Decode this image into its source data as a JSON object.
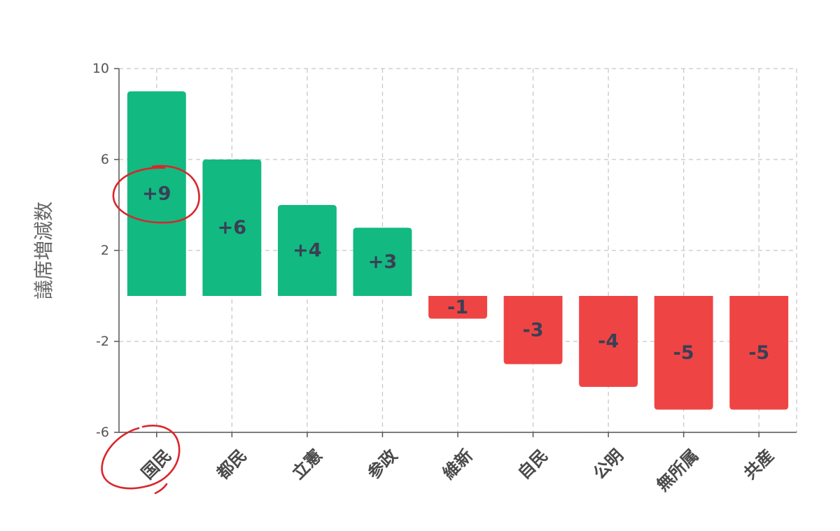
{
  "chart_data": {
    "type": "bar",
    "categories": [
      "国民",
      "都民",
      "立憲",
      "参政",
      "維新",
      "自民",
      "公明",
      "無所属",
      "共産"
    ],
    "values": [
      9,
      6,
      4,
      3,
      -1,
      -3,
      -4,
      -5,
      -5
    ],
    "data_labels": [
      "+9",
      "+6",
      "+4",
      "+3",
      "-1",
      "-3",
      "-4",
      "-5",
      "-5"
    ],
    "ylabel": "議席増減数",
    "xlabel": "",
    "ylim": [
      -6,
      10
    ],
    "yticks": [
      -6,
      -2,
      2,
      6,
      10
    ],
    "y_tick_labels": [
      "-6",
      "-2",
      "2",
      "6",
      "10"
    ],
    "grid": true,
    "colors": {
      "positive": "#12b981",
      "negative": "#ef4444",
      "annotation": "#d9262b"
    },
    "annotations": [
      "circle around +9 label",
      "circle around 国民 category label"
    ]
  }
}
